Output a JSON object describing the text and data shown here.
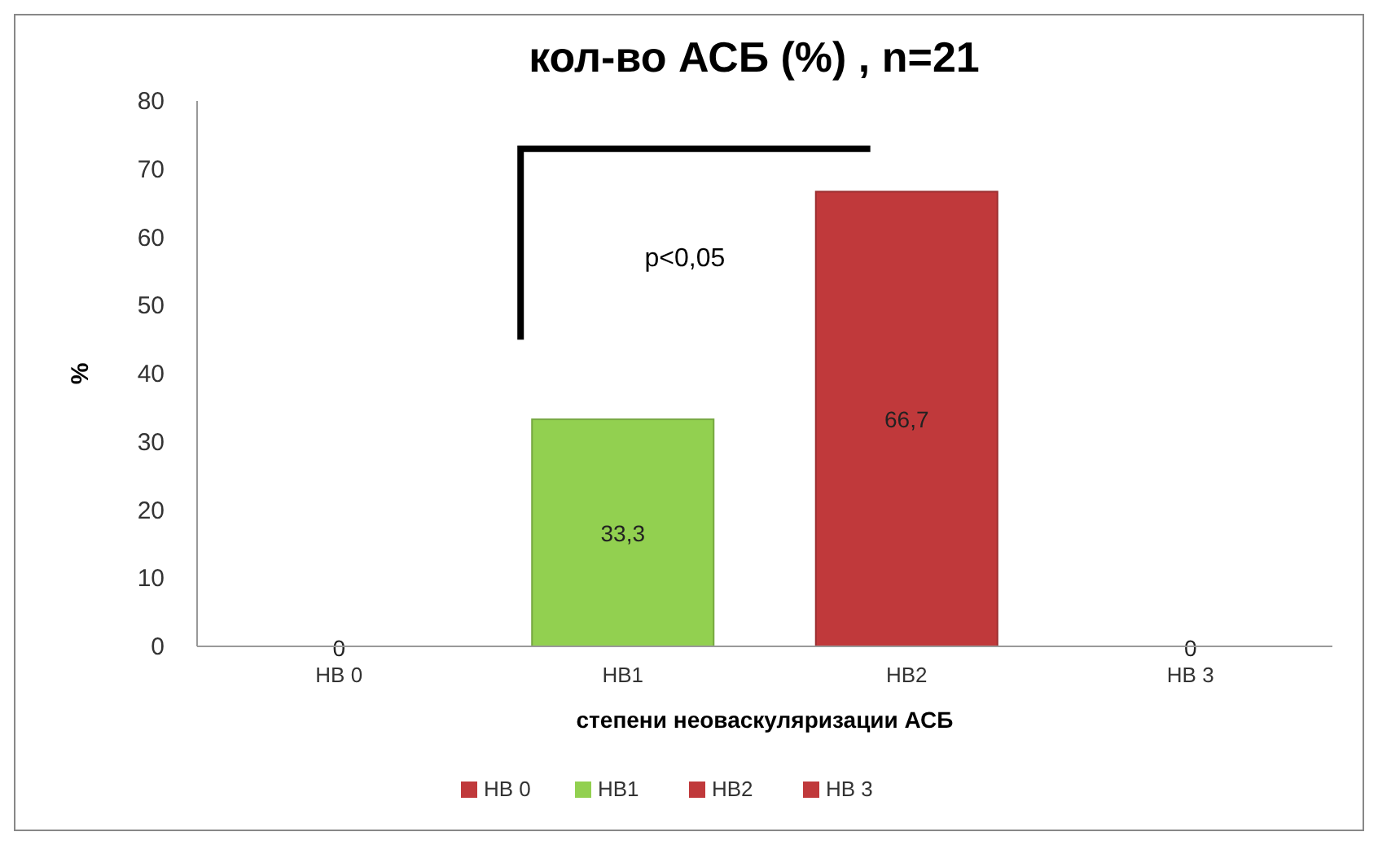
{
  "chart_data": {
    "type": "bar",
    "title": "кол-во АСБ (%) , n=21",
    "xlabel": "степени неоваскуляризации АСБ",
    "ylabel": "%",
    "categories": [
      "НВ 0",
      "НВ1",
      "НВ2",
      "НВ 3"
    ],
    "series": [
      {
        "name": "НВ 0",
        "color": "#c0393b",
        "values": [
          0,
          null,
          null,
          null
        ],
        "value_labels": [
          "0",
          null,
          null,
          null
        ]
      },
      {
        "name": "НВ1",
        "color": "#92d050",
        "values": [
          null,
          33.3,
          null,
          null
        ],
        "value_labels": [
          null,
          "33,3",
          null,
          null
        ]
      },
      {
        "name": "НВ2",
        "color": "#c0393b",
        "values": [
          null,
          null,
          66.7,
          null
        ],
        "value_labels": [
          null,
          null,
          "66,7",
          null
        ]
      },
      {
        "name": "НВ 3",
        "color": "#c0393b",
        "values": [
          null,
          null,
          null,
          0
        ],
        "value_labels": [
          null,
          null,
          null,
          "0"
        ]
      }
    ],
    "ylim": [
      0,
      80
    ],
    "yticks": [
      0,
      10,
      20,
      30,
      40,
      50,
      60,
      70,
      80
    ],
    "annotations": [
      "p<0,05"
    ],
    "legend": "bottom"
  }
}
